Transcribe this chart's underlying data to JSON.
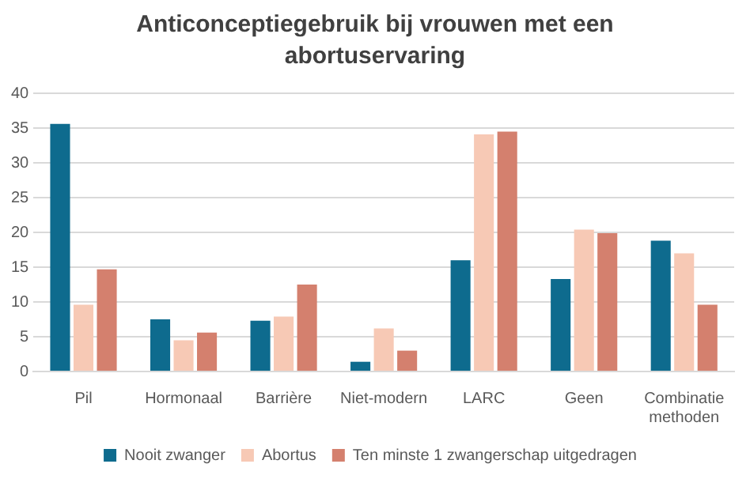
{
  "chart_data": {
    "type": "bar",
    "title": "Anticonceptiegebruik bij vrouwen met een abortuservaring",
    "categories": [
      "Pil",
      "Hormonaal",
      "Barrière",
      "Niet-modern",
      "LARC",
      "Geen",
      "Combinatie methoden"
    ],
    "series": [
      {
        "name": "Nooit zwanger",
        "color": "#0e6b8e",
        "values": [
          35.6,
          7.5,
          7.3,
          1.4,
          16.0,
          13.3,
          18.8
        ]
      },
      {
        "name": "Abortus",
        "color": "#f7c9b5",
        "values": [
          9.6,
          4.5,
          7.9,
          6.2,
          34.1,
          20.4,
          17.0
        ]
      },
      {
        "name": "Ten minste 1 zwangerschap uitgedragen",
        "color": "#d4806e",
        "values": [
          14.7,
          5.6,
          12.5,
          3.0,
          34.5,
          19.9,
          9.6
        ]
      }
    ],
    "ylim": [
      0,
      40
    ],
    "yticks": [
      0,
      5,
      10,
      15,
      20,
      25,
      30,
      35,
      40
    ],
    "grid": "y",
    "legend": "bottom"
  }
}
